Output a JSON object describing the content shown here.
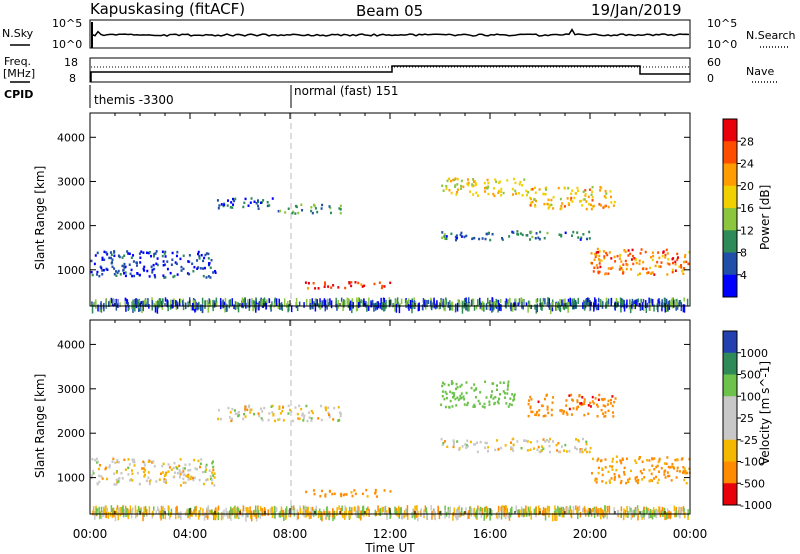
{
  "header": {
    "station": "Kapuskasing (fitACF)",
    "beam": "Beam 05",
    "date": "19/Jan/2019"
  },
  "noise_panel": {
    "left_label": "N.Sky",
    "right_label": "N.Search",
    "left_ticks": [
      "10^5",
      "10^0"
    ],
    "right_ticks": [
      "10^5",
      "10^0"
    ]
  },
  "freq_panel": {
    "left_label": "Freq.",
    "left_unit": "[MHz]",
    "right_label": "Nave",
    "left_ticks": [
      "18",
      "8"
    ],
    "right_ticks": [
      "60",
      "0"
    ]
  },
  "cpid": {
    "label": "CPID",
    "modes": [
      {
        "name": "themis -3300",
        "start_hour": 0.0
      },
      {
        "name": "normal (fast) 151",
        "start_hour": 8.0
      }
    ]
  },
  "chart_data": [
    {
      "type": "heatmap",
      "panel": "power",
      "xlabel": "",
      "ylabel": "Slant Range [km]",
      "x_range_hours": [
        0,
        24
      ],
      "ylim": [
        180,
        4550
      ],
      "y_ticks": [
        1000,
        2000,
        3000,
        4000
      ],
      "colorbar": {
        "label": "Power [dB]",
        "ticks": [
          "28",
          "24",
          "20",
          "16",
          "12",
          "8",
          "4"
        ],
        "colors": [
          "#e8000b",
          "#ff4d00",
          "#ff9d00",
          "#f0d000",
          "#8cc63f",
          "#2e8b57",
          "#1f4fa8",
          "#0000ff"
        ]
      },
      "scatter_regions": [
        {
          "t": [
            0.0,
            5.0
          ],
          "r": [
            850,
            1450
          ],
          "value_db": 5
        },
        {
          "t": [
            5.0,
            7.5
          ],
          "r": [
            2400,
            2650
          ],
          "value_db": 6
        },
        {
          "t": [
            7.5,
            10.0
          ],
          "r": [
            2300,
            2500
          ],
          "value_db": 10
        },
        {
          "t": [
            8.5,
            12.0
          ],
          "r": [
            600,
            750
          ],
          "value_db": 28
        },
        {
          "t": [
            14.0,
            17.5
          ],
          "r": [
            2700,
            3100
          ],
          "value_db": 18
        },
        {
          "t": [
            14.0,
            20.0
          ],
          "r": [
            1700,
            1900
          ],
          "value_db": 8
        },
        {
          "t": [
            17.5,
            21.0
          ],
          "r": [
            2400,
            2900
          ],
          "value_db": 20
        },
        {
          "t": [
            20.0,
            24.0
          ],
          "r": [
            900,
            1500
          ],
          "value_db": 24
        }
      ]
    },
    {
      "type": "heatmap",
      "panel": "velocity",
      "xlabel": "Time UT",
      "ylabel": "Slant Range [km]",
      "x_range_hours": [
        0,
        24
      ],
      "ylim": [
        180,
        4550
      ],
      "y_ticks": [
        1000,
        2000,
        3000,
        4000
      ],
      "x_ticks": [
        "00:00",
        "04:00",
        "08:00",
        "12:00",
        "16:00",
        "20:00",
        "00:00"
      ],
      "colorbar": {
        "label": "Velocity [m s^-1]",
        "ticks": [
          "1000",
          "500",
          "100",
          "25",
          "-25",
          "-100",
          "-500",
          "-1000"
        ],
        "colors": [
          "#2240b0",
          "#2e8b57",
          "#6cc24a",
          "#c8c8c8",
          "#c8c8c8",
          "#f5b800",
          "#ff8c00",
          "#e8000b"
        ]
      },
      "scatter_regions": [
        {
          "t": [
            0.0,
            5.0
          ],
          "r": [
            850,
            1450
          ],
          "value_ms": 0
        },
        {
          "t": [
            5.0,
            10.0
          ],
          "r": [
            2300,
            2650
          ],
          "value_ms": 0
        },
        {
          "t": [
            8.5,
            12.0
          ],
          "r": [
            600,
            750
          ],
          "value_ms": -200
        },
        {
          "t": [
            14.0,
            17.0
          ],
          "r": [
            2600,
            3200
          ],
          "value_ms": 300
        },
        {
          "t": [
            14.0,
            20.0
          ],
          "r": [
            1600,
            1900
          ],
          "value_ms": 0
        },
        {
          "t": [
            17.5,
            21.0
          ],
          "r": [
            2400,
            2900
          ],
          "value_ms": -400
        },
        {
          "t": [
            20.0,
            24.0
          ],
          "r": [
            900,
            1500
          ],
          "value_ms": -150
        }
      ]
    }
  ]
}
